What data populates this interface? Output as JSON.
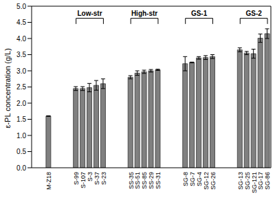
{
  "chart_data": {
    "type": "bar",
    "y_label": "ε-PL concentration (g/L)",
    "categories": [
      null,
      null,
      "M-Z18",
      null,
      null,
      null,
      "S-99",
      "S-107",
      "S-3",
      "S-37",
      "S-23",
      null,
      null,
      null,
      "SS-35",
      "SS-51",
      "SS-85",
      "SS-29",
      "SS-31",
      null,
      null,
      null,
      "SG-8",
      "SG-7",
      "SG-4",
      "SG-12",
      "SG-26",
      null,
      null,
      null,
      "SG-13",
      "SG-25",
      "SG-121",
      "SG-17",
      "SG-86"
    ],
    "values": [
      null,
      null,
      1.6,
      null,
      null,
      null,
      2.45,
      2.45,
      2.48,
      2.55,
      2.6,
      null,
      null,
      null,
      2.8,
      2.93,
      2.97,
      3.0,
      3.03,
      null,
      null,
      null,
      3.22,
      3.26,
      3.4,
      3.41,
      3.44,
      null,
      null,
      null,
      3.65,
      3.55,
      3.53,
      4.01,
      4.15
    ],
    "errors": [
      null,
      null,
      0.01,
      null,
      null,
      null,
      0.06,
      0.06,
      0.13,
      0.15,
      0.15,
      null,
      null,
      null,
      0.05,
      0.07,
      0.05,
      0.04,
      0.02,
      null,
      null,
      null,
      0.22,
      0.01,
      0.04,
      0.06,
      0.06,
      null,
      null,
      null,
      0.06,
      0.05,
      0.14,
      0.13,
      0.15
    ],
    "color": "#808080",
    "groups": [
      {
        "label": "Low-str",
        "start": "S-99",
        "end": "S-23"
      },
      {
        "label": "High-str",
        "start": "SS-35",
        "end": "SS-31"
      },
      {
        "label": "GS-1",
        "start": "SG-8",
        "end": "SG-26"
      },
      {
        "label": "GS-2",
        "start": "SG-13",
        "end": "SG-86"
      }
    ],
    "ylim": [
      0,
      5
    ],
    "yticks": [
      {
        "value": 0,
        "label": "0.0"
      },
      0.5,
      {
        "value": 1,
        "label": "1.0"
      },
      1.5,
      {
        "value": 2,
        "label": "2.0"
      },
      2.5,
      {
        "value": 3,
        "label": "3.0"
      },
      3.5,
      {
        "value": 4,
        "label": "4.0"
      },
      4.5,
      {
        "value": 5,
        "label": "5.0"
      }
    ]
  }
}
